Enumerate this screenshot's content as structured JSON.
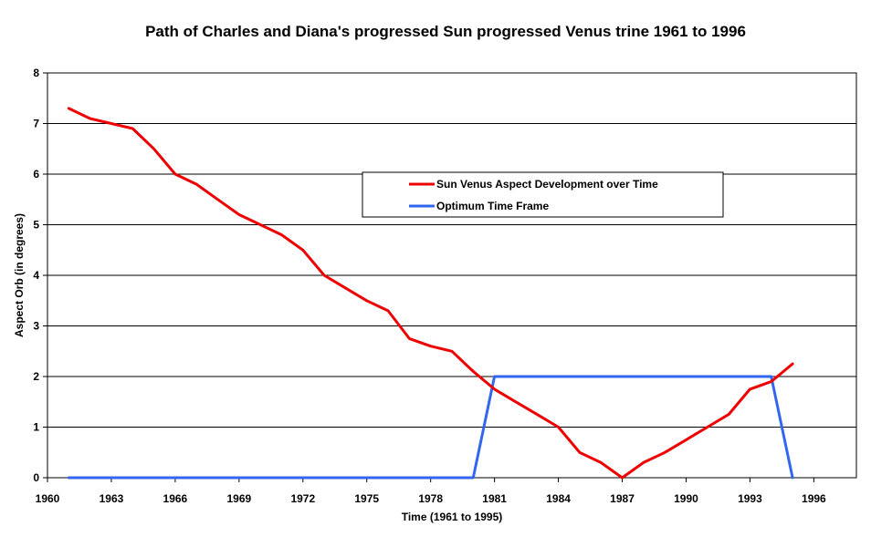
{
  "chart_data": {
    "type": "line",
    "title": "Path of Charles and Diana's progressed Sun progressed Venus trine 1961 to 1996",
    "xlabel": "Time (1961 to 1995)",
    "ylabel": "Aspect Orb (in degrees)",
    "xlim": [
      1960,
      1998
    ],
    "ylim": [
      0,
      8
    ],
    "xticks": [
      1960,
      1963,
      1966,
      1969,
      1972,
      1975,
      1978,
      1981,
      1984,
      1987,
      1990,
      1993,
      1996
    ],
    "yticks": [
      0,
      1,
      2,
      3,
      4,
      5,
      6,
      7,
      8
    ],
    "grid": "horizontal",
    "legend_position": "center",
    "series": [
      {
        "name": "Sun Venus Aspect Development over Time",
        "color": "#ee0000",
        "x": [
          1961,
          1962,
          1963,
          1964,
          1965,
          1966,
          1967,
          1968,
          1969,
          1970,
          1971,
          1972,
          1973,
          1974,
          1975,
          1976,
          1977,
          1978,
          1979,
          1980,
          1981,
          1982,
          1983,
          1984,
          1985,
          1986,
          1987,
          1988,
          1989,
          1990,
          1991,
          1992,
          1993,
          1994,
          1995
        ],
        "values": [
          7.3,
          7.1,
          7.0,
          6.9,
          6.5,
          6.0,
          5.8,
          5.5,
          5.2,
          5.0,
          4.8,
          4.5,
          4.0,
          3.75,
          3.5,
          3.3,
          2.75,
          2.6,
          2.5,
          2.1,
          1.75,
          1.5,
          1.25,
          1.0,
          0.5,
          0.3,
          0.0,
          0.3,
          0.5,
          0.75,
          1.0,
          1.25,
          1.75,
          1.9,
          2.25
        ]
      },
      {
        "name": "Optimum Time Frame",
        "color": "#3366ee",
        "x": [
          1961,
          1980,
          1981,
          1994,
          1995
        ],
        "values": [
          0,
          0,
          2,
          2,
          0
        ]
      }
    ]
  }
}
